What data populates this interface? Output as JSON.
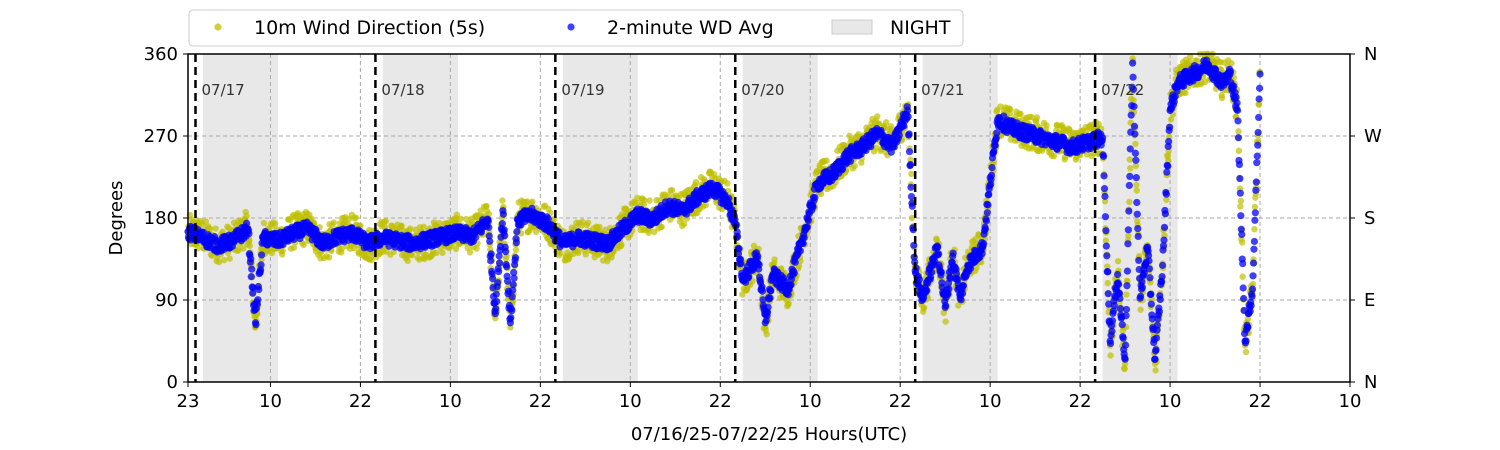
{
  "chart_data": {
    "type": "scatter",
    "xlabel": "07/16/25-07/22/25  Hours(UTC)",
    "ylabel": "Degrees",
    "ylim": [
      0,
      360
    ],
    "yticks": [
      0,
      90,
      180,
      270,
      360
    ],
    "right_ticks": [
      {
        "value": 0,
        "label": "N"
      },
      {
        "value": 90,
        "label": "E"
      },
      {
        "value": 180,
        "label": "S"
      },
      {
        "value": 270,
        "label": "W"
      },
      {
        "value": 360,
        "label": "N"
      }
    ],
    "xlim_hours": [
      0,
      155
    ],
    "x_ticks": [
      {
        "hour": 0,
        "label": "23"
      },
      {
        "hour": 11,
        "label": "10"
      },
      {
        "hour": 23,
        "label": "22"
      },
      {
        "hour": 35,
        "label": "10"
      },
      {
        "hour": 47,
        "label": "22"
      },
      {
        "hour": 59,
        "label": "10"
      },
      {
        "hour": 71,
        "label": "22"
      },
      {
        "hour": 83,
        "label": "10"
      },
      {
        "hour": 95,
        "label": "22"
      },
      {
        "hour": 107,
        "label": "10"
      },
      {
        "hour": 119,
        "label": "22"
      },
      {
        "hour": 131,
        "label": "10"
      },
      {
        "hour": 143,
        "label": "22"
      },
      {
        "hour": 155,
        "label": "10"
      }
    ],
    "grid": {
      "y": true,
      "x": true,
      "style": "dashed"
    },
    "legend": {
      "placement": "top-left",
      "entries": [
        {
          "label": "10m Wind Direction (5s)",
          "marker": "circle",
          "color": "#bfbf00"
        },
        {
          "label": "2-minute WD Avg",
          "marker": "circle",
          "color": "#0000ff"
        },
        {
          "label": "NIGHT",
          "marker": "patch",
          "color": "#e8e8e8"
        }
      ]
    },
    "night_periods": [
      [
        2,
        12
      ],
      [
        26,
        36
      ],
      [
        50,
        60
      ],
      [
        74,
        84
      ],
      [
        98,
        108
      ],
      [
        122,
        132
      ]
    ],
    "day_markers": [
      {
        "hour": 1,
        "label": "07/17"
      },
      {
        "hour": 25,
        "label": "07/18"
      },
      {
        "hour": 49,
        "label": "07/19"
      },
      {
        "hour": 73,
        "label": "07/20"
      },
      {
        "hour": 97,
        "label": "07/21"
      },
      {
        "hour": 121,
        "label": "07/22"
      }
    ],
    "data_end_hour": 143,
    "series": [
      {
        "name": "10m Wind Direction (5s)",
        "color": "#bfbf00",
        "hours": [
          0,
          2,
          4,
          6,
          8,
          9,
          10,
          12,
          14,
          16,
          18,
          20,
          22,
          24,
          26,
          28,
          30,
          32,
          34,
          36,
          38,
          40,
          41,
          42,
          43,
          44,
          46,
          48,
          50,
          52,
          54,
          56,
          58,
          60,
          62,
          64,
          66,
          68,
          70,
          72,
          73,
          74,
          76,
          77,
          78,
          80,
          82,
          84,
          86,
          88,
          90,
          92,
          94,
          96,
          97,
          98,
          100,
          101,
          102,
          103,
          104,
          106,
          108,
          110,
          112,
          114,
          116,
          118,
          120,
          122,
          123,
          124,
          125,
          126,
          127,
          128,
          129,
          130,
          131,
          132,
          134,
          136,
          138,
          139,
          140,
          141,
          142,
          143
        ],
        "values": [
          165,
          160,
          150,
          155,
          170,
          60,
          160,
          155,
          165,
          170,
          150,
          160,
          165,
          150,
          160,
          155,
          150,
          155,
          160,
          165,
          160,
          180,
          70,
          190,
          60,
          180,
          185,
          175,
          150,
          160,
          155,
          150,
          170,
          185,
          180,
          195,
          190,
          205,
          215,
          200,
          175,
          110,
          140,
          60,
          120,
          100,
          160,
          220,
          230,
          250,
          260,
          275,
          260,
          300,
          120,
          90,
          150,
          80,
          140,
          90,
          130,
          150,
          290,
          280,
          275,
          270,
          265,
          260,
          265,
          270,
          40,
          120,
          20,
          355,
          90,
          150,
          20,
          130,
          300,
          330,
          340,
          350,
          330,
          340,
          300,
          40,
          100,
          340
        ]
      },
      {
        "name": "2-minute WD Avg",
        "color": "#0000ff",
        "hours": [
          0,
          2,
          4,
          6,
          8,
          9,
          10,
          12,
          14,
          16,
          18,
          20,
          22,
          24,
          26,
          28,
          30,
          32,
          34,
          36,
          38,
          40,
          41,
          42,
          43,
          44,
          46,
          48,
          50,
          52,
          54,
          56,
          58,
          60,
          62,
          64,
          66,
          68,
          70,
          72,
          73,
          74,
          76,
          77,
          78,
          80,
          82,
          84,
          86,
          88,
          90,
          92,
          94,
          96,
          97,
          98,
          100,
          101,
          102,
          103,
          104,
          106,
          108,
          110,
          112,
          114,
          116,
          118,
          120,
          122,
          123,
          124,
          125,
          126,
          127,
          128,
          129,
          130,
          131,
          132,
          134,
          136,
          138,
          139,
          140,
          141,
          142,
          143
        ],
        "values": [
          165,
          158,
          150,
          155,
          168,
          65,
          158,
          155,
          163,
          168,
          152,
          160,
          163,
          152,
          158,
          155,
          152,
          156,
          160,
          163,
          160,
          178,
          75,
          188,
          65,
          178,
          183,
          173,
          152,
          158,
          155,
          152,
          168,
          183,
          178,
          193,
          188,
          203,
          213,
          198,
          173,
          112,
          138,
          65,
          118,
          102,
          158,
          218,
          228,
          248,
          258,
          273,
          258,
          298,
          122,
          92,
          148,
          82,
          138,
          92,
          128,
          148,
          288,
          278,
          273,
          268,
          263,
          258,
          263,
          268,
          45,
          118,
          25,
          350,
          92,
          148,
          25,
          128,
          298,
          328,
          338,
          348,
          328,
          338,
          298,
          45,
          102,
          338
        ]
      }
    ]
  }
}
